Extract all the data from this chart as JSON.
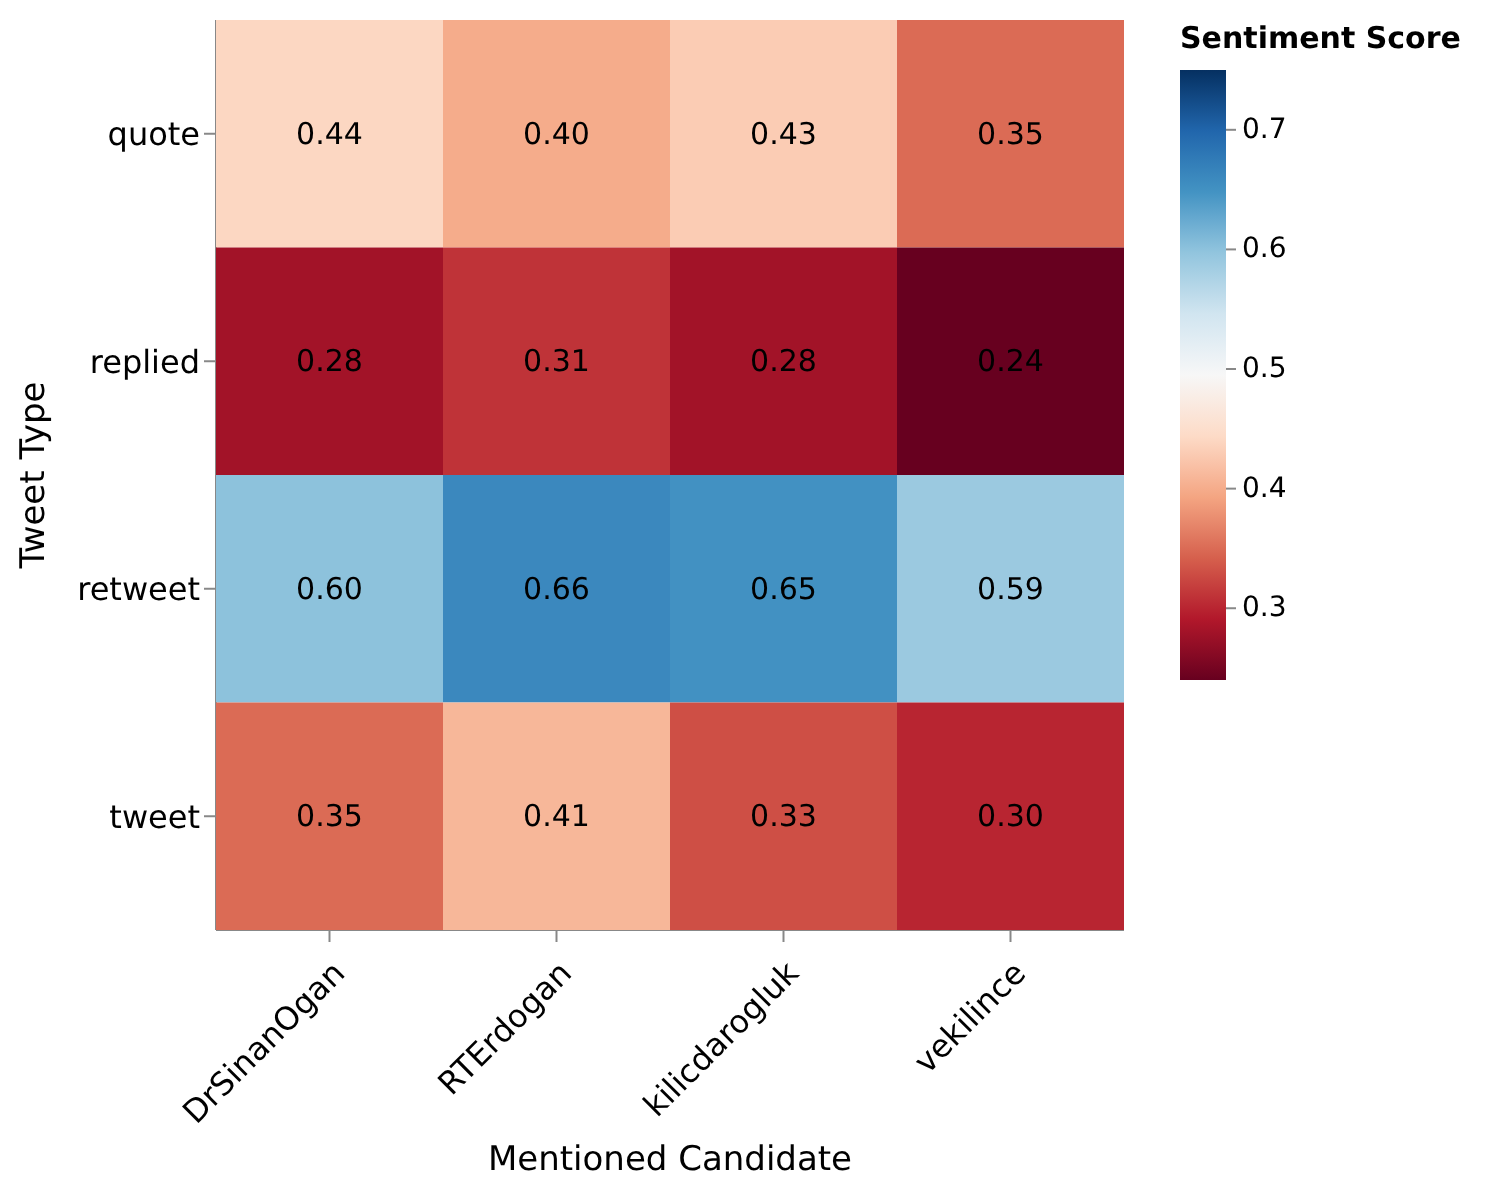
{
  "chart_data": {
    "type": "heatmap",
    "xlabel": "Mentioned Candidate",
    "ylabel": "Tweet Type",
    "clabel": "Sentiment Score",
    "categories": [
      "DrSinanOgan",
      "RTErdogan",
      "kilicdarogluk",
      "vekilince"
    ],
    "y_categories": [
      "quote",
      "replied",
      "retweet",
      "tweet"
    ],
    "cells": [
      [
        0.44,
        0.4,
        0.43,
        0.35
      ],
      [
        0.28,
        0.31,
        0.28,
        0.24
      ],
      [
        0.6,
        0.66,
        0.65,
        0.59
      ],
      [
        0.35,
        0.41,
        0.33,
        0.3
      ]
    ],
    "cell_labels": [
      [
        "0.44",
        "0.40",
        "0.43",
        "0.35"
      ],
      [
        "0.28",
        "0.31",
        "0.28",
        "0.24"
      ],
      [
        "0.60",
        "0.66",
        "0.65",
        "0.59"
      ],
      [
        "0.35",
        "0.41",
        "0.33",
        "0.30"
      ]
    ],
    "clim": [
      0.24,
      0.75
    ],
    "cticks": [
      0.3,
      0.4,
      0.5,
      0.6,
      0.7
    ]
  }
}
